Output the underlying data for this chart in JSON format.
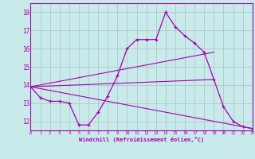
{
  "xlabel": "Windchill (Refroidissement éolien,°C)",
  "background_color": "#c8eaea",
  "grid_color": "#b0c8c8",
  "line_color": "#aa00aa",
  "spine_color": "#aa00aa",
  "xmin": 0,
  "xmax": 23,
  "ymin": 11.5,
  "ymax": 18.5,
  "yticks": [
    12,
    13,
    14,
    15,
    16,
    17,
    18
  ],
  "xticks": [
    0,
    1,
    2,
    3,
    4,
    5,
    6,
    7,
    8,
    9,
    10,
    11,
    12,
    13,
    14,
    15,
    16,
    17,
    18,
    19,
    20,
    21,
    22,
    23
  ],
  "lines": [
    {
      "x": [
        0,
        1,
        2,
        3,
        4,
        5,
        6,
        7,
        8,
        9,
        10,
        11,
        12,
        13,
        14,
        15,
        16,
        17,
        18,
        19,
        20,
        21,
        22,
        23
      ],
      "y": [
        13.9,
        13.3,
        13.1,
        13.1,
        13.0,
        11.8,
        11.8,
        12.5,
        13.4,
        14.5,
        16.0,
        16.5,
        16.5,
        16.5,
        18.0,
        17.2,
        16.7,
        16.3,
        15.8,
        14.3,
        12.8,
        12.0,
        11.7,
        11.6
      ],
      "has_markers": true
    },
    {
      "x": [
        0,
        19
      ],
      "y": [
        13.9,
        15.8
      ],
      "has_markers": false
    },
    {
      "x": [
        0,
        19
      ],
      "y": [
        13.9,
        14.3
      ],
      "has_markers": false
    },
    {
      "x": [
        0,
        23
      ],
      "y": [
        13.9,
        11.6
      ],
      "has_markers": false
    }
  ]
}
